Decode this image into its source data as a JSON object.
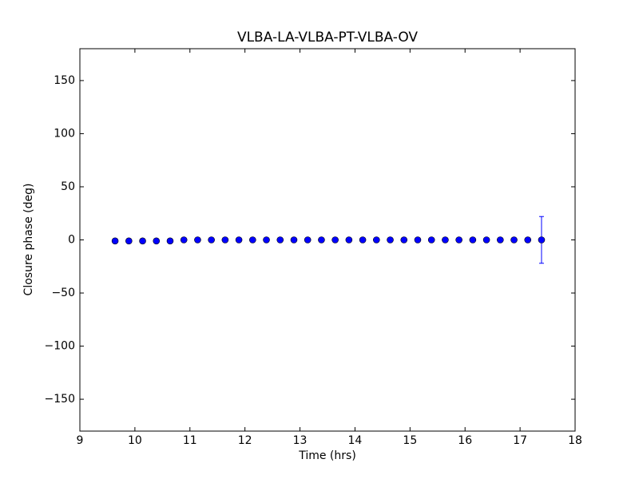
{
  "chart_data": {
    "type": "errorbar",
    "title": "VLBA-LA-VLBA-PT-VLBA-OV",
    "xlabel": "Time (hrs)",
    "ylabel": "Closure phase (deg)",
    "color": "#0000ff",
    "x": [
      9.64,
      9.89,
      10.14,
      10.39,
      10.64,
      10.89,
      11.14,
      11.39,
      11.64,
      11.89,
      12.14,
      12.39,
      12.64,
      12.89,
      13.14,
      13.39,
      13.64,
      13.89,
      14.14,
      14.39,
      14.64,
      14.89,
      15.14,
      15.39,
      15.64,
      15.89,
      16.14,
      16.39,
      16.64,
      16.89,
      17.14,
      17.39
    ],
    "values": [
      -1,
      -1,
      -1,
      -1,
      -1,
      0,
      0,
      0,
      0,
      0,
      0,
      0,
      0,
      0,
      0,
      0,
      0,
      0,
      0,
      0,
      0,
      0,
      0,
      0,
      0,
      0,
      0,
      0,
      0,
      0,
      0,
      0
    ],
    "errors": [
      2,
      1,
      1,
      1,
      1,
      1,
      1,
      1,
      1,
      1,
      1,
      1,
      1,
      1,
      1,
      1,
      1,
      1,
      1,
      1,
      1,
      1,
      1,
      1,
      1,
      1,
      1,
      1,
      1,
      1,
      1,
      22
    ],
    "xlim": [
      9,
      18
    ],
    "xticks": [
      9,
      10,
      11,
      12,
      13,
      14,
      15,
      16,
      17,
      18
    ],
    "ylim": [
      -180,
      180
    ],
    "yticks": [
      {
        "value": -150,
        "label": "−150"
      },
      {
        "value": -100,
        "label": "−100"
      },
      {
        "value": -50,
        "label": "−50"
      },
      0,
      50,
      100,
      150
    ]
  }
}
